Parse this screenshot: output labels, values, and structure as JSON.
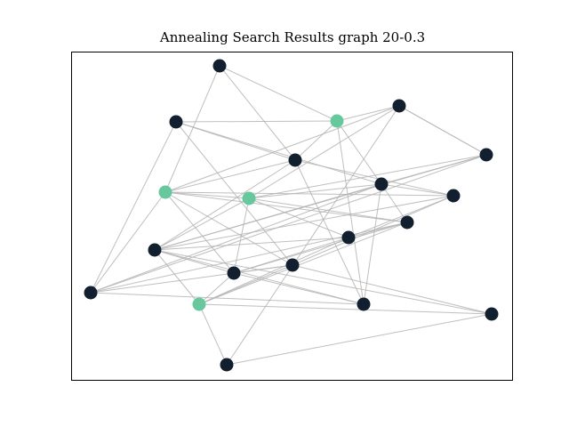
{
  "figure": {
    "title": "Annealing Search Results graph 20-0.3"
  },
  "colors": {
    "node_default": "#111f2e",
    "node_selected": "#66c89c",
    "edge": "#b4b4b4",
    "frame": "#000000"
  },
  "graph": {
    "nodes": [
      {
        "id": 0,
        "selected": false
      },
      {
        "id": 1,
        "selected": false
      },
      {
        "id": 2,
        "selected": true
      },
      {
        "id": 3,
        "selected": false
      },
      {
        "id": 4,
        "selected": false
      },
      {
        "id": 5,
        "selected": false
      },
      {
        "id": 6,
        "selected": true
      },
      {
        "id": 7,
        "selected": true
      },
      {
        "id": 8,
        "selected": false
      },
      {
        "id": 9,
        "selected": false
      },
      {
        "id": 10,
        "selected": false
      },
      {
        "id": 11,
        "selected": false
      },
      {
        "id": 12,
        "selected": false
      },
      {
        "id": 13,
        "selected": false
      },
      {
        "id": 14,
        "selected": false
      },
      {
        "id": 15,
        "selected": false
      },
      {
        "id": 16,
        "selected": true
      },
      {
        "id": 17,
        "selected": false
      },
      {
        "id": 18,
        "selected": false
      },
      {
        "id": 19,
        "selected": false
      }
    ],
    "edges": [
      [
        0,
        2
      ],
      [
        0,
        5
      ],
      [
        0,
        6
      ],
      [
        1,
        5
      ],
      [
        1,
        8
      ],
      [
        1,
        15
      ],
      [
        1,
        13
      ],
      [
        2,
        1
      ],
      [
        2,
        3
      ],
      [
        2,
        5
      ],
      [
        2,
        8
      ],
      [
        2,
        17
      ],
      [
        3,
        6
      ],
      [
        3,
        4
      ],
      [
        3,
        19
      ],
      [
        4,
        3
      ],
      [
        4,
        8
      ],
      [
        4,
        12
      ],
      [
        4,
        15
      ],
      [
        5,
        6
      ],
      [
        5,
        9
      ],
      [
        5,
        17
      ],
      [
        5,
        12
      ],
      [
        6,
        7
      ],
      [
        6,
        9
      ],
      [
        6,
        10
      ],
      [
        6,
        13
      ],
      [
        6,
        14
      ],
      [
        6,
        15
      ],
      [
        7,
        3
      ],
      [
        7,
        4
      ],
      [
        7,
        8
      ],
      [
        7,
        10
      ],
      [
        7,
        11
      ],
      [
        7,
        12
      ],
      [
        7,
        14
      ],
      [
        8,
        9
      ],
      [
        8,
        12
      ],
      [
        8,
        10
      ],
      [
        8,
        15
      ],
      [
        9,
        11
      ],
      [
        9,
        12
      ],
      [
        9,
        13
      ],
      [
        10,
        11
      ],
      [
        10,
        14
      ],
      [
        10,
        15
      ],
      [
        10,
        16
      ],
      [
        11,
        12
      ],
      [
        11,
        14
      ],
      [
        11,
        16
      ],
      [
        12,
        14
      ],
      [
        12,
        16
      ],
      [
        12,
        17
      ],
      [
        12,
        18
      ],
      [
        13,
        16
      ],
      [
        13,
        18
      ],
      [
        13,
        14
      ],
      [
        14,
        16
      ],
      [
        14,
        17
      ],
      [
        15,
        13
      ],
      [
        15,
        17
      ],
      [
        16,
        18
      ],
      [
        16,
        19
      ],
      [
        17,
        8
      ],
      [
        18,
        19
      ]
    ]
  }
}
